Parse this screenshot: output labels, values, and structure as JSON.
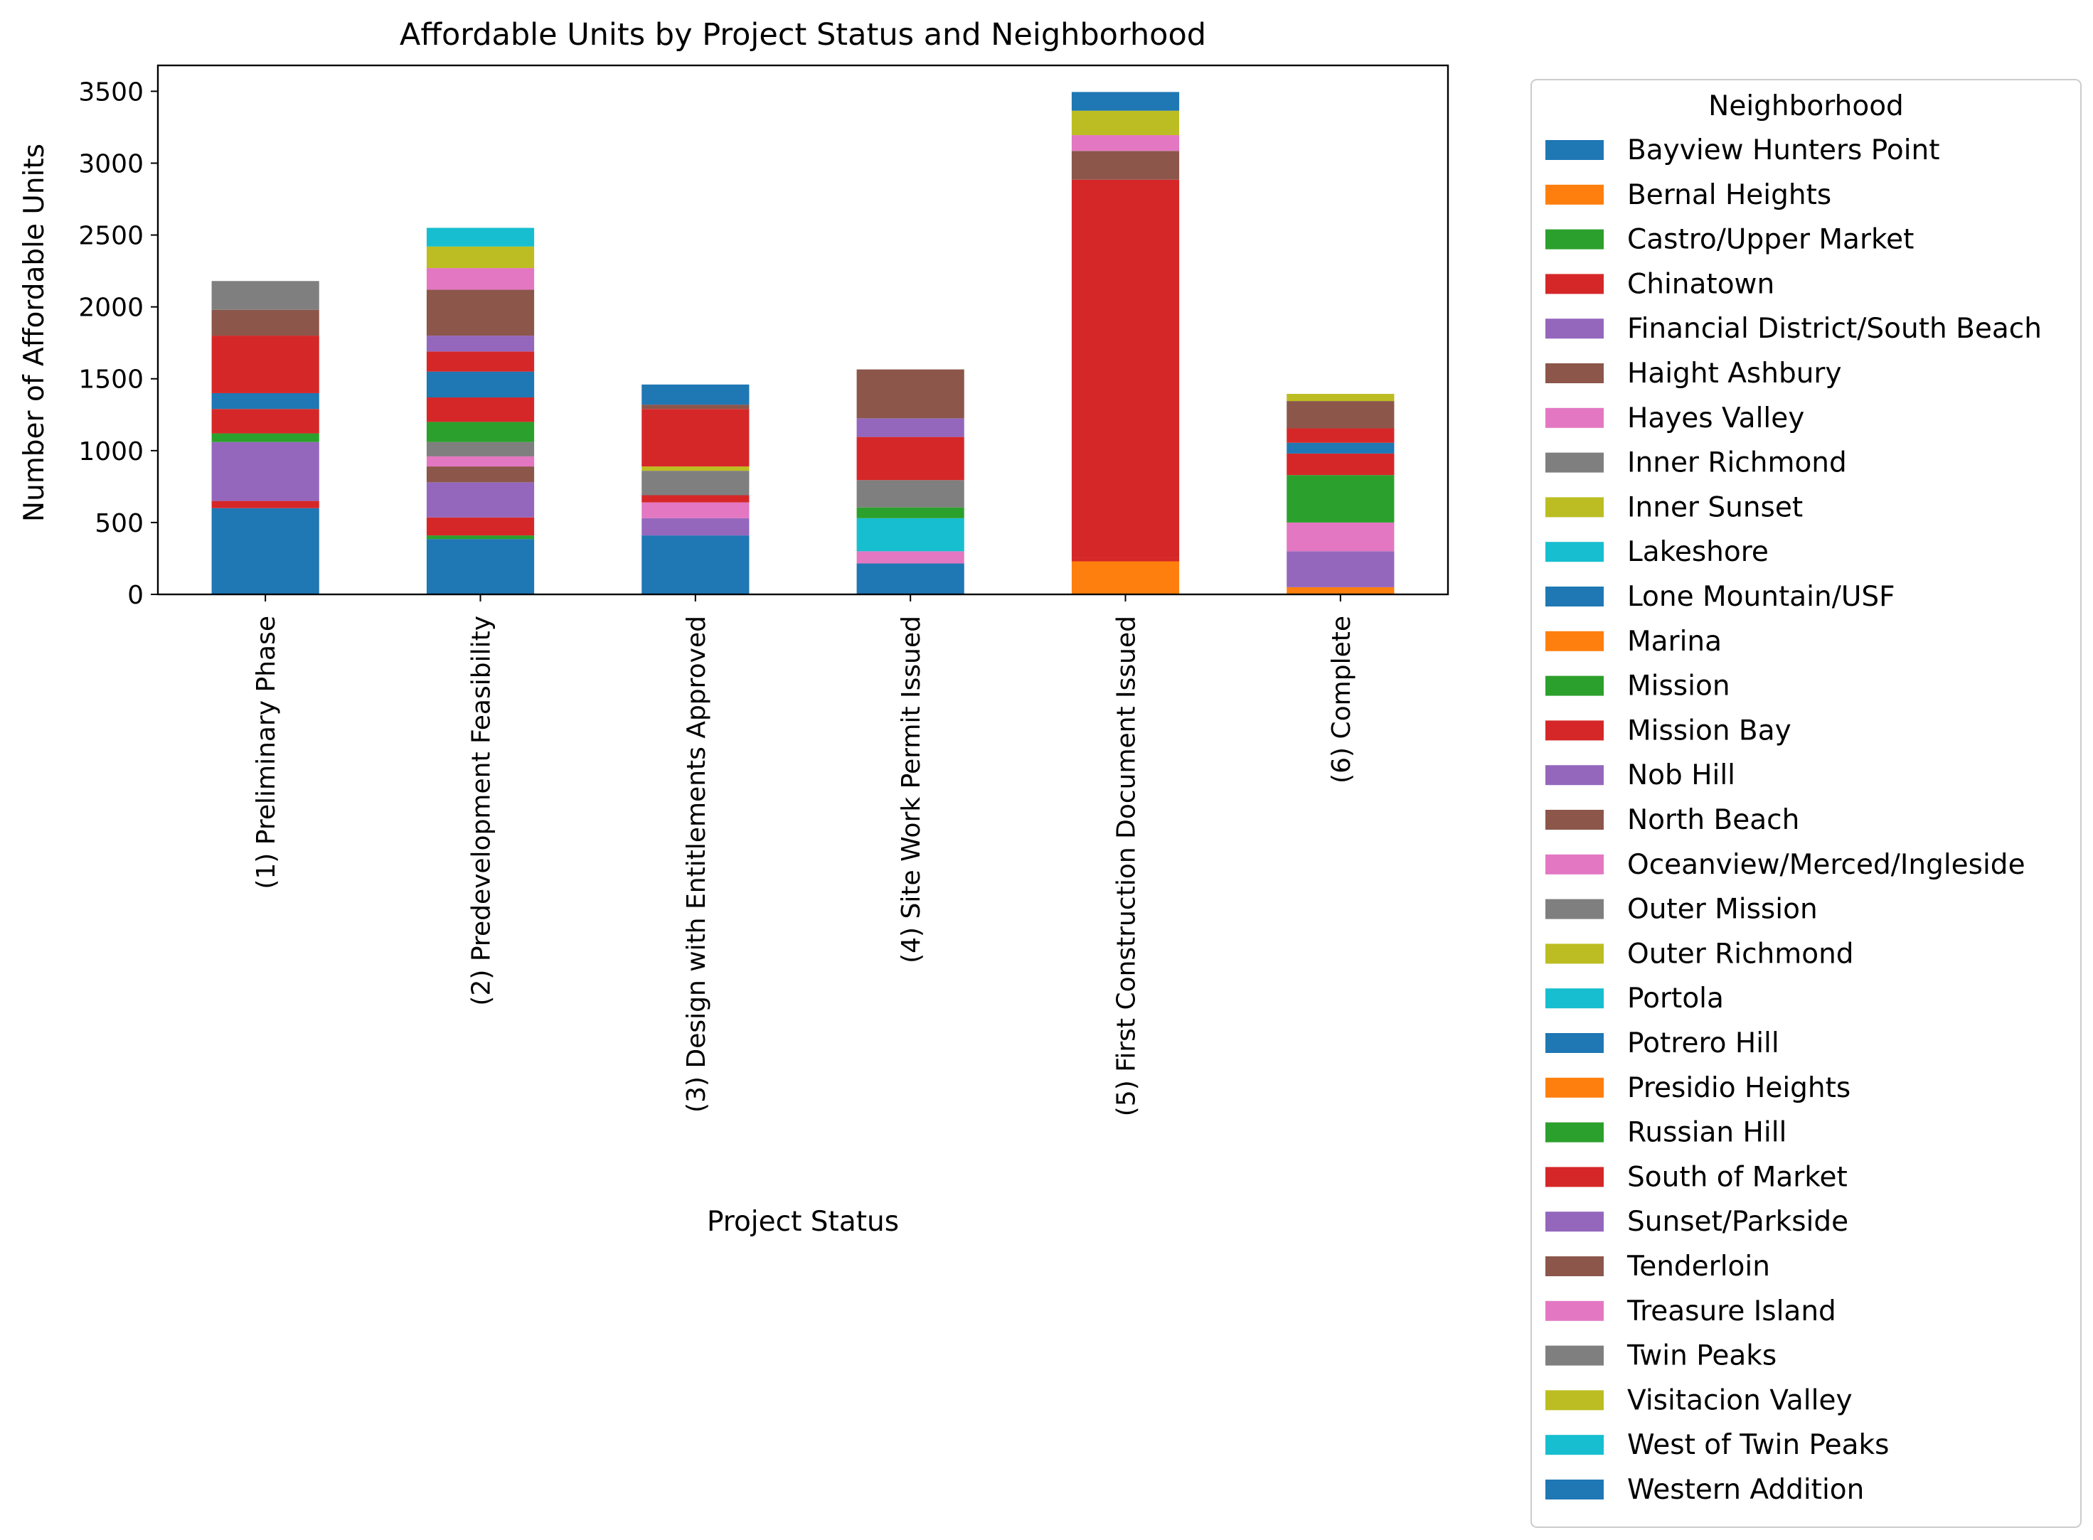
{
  "chart_data": {
    "type": "bar",
    "stacked": true,
    "title": "Affordable Units by Project Status and Neighborhood",
    "xlabel": "Project Status",
    "ylabel": "Number of Affordable Units",
    "ylim": [
      0,
      3680
    ],
    "yticks": [
      0,
      500,
      1000,
      1500,
      2000,
      2500,
      3000,
      3500
    ],
    "grid": false,
    "legend": {
      "title": "Neighborhood",
      "placement": "outside-right"
    },
    "categories": [
      "(1) Preliminary Phase",
      "(2) Predevelopment Feasibility",
      "(3) Design with Entitlements Approved",
      "(4) Site Work Permit Issued",
      "(5) First Construction Document Issued",
      "(6) Complete"
    ],
    "series": [
      {
        "name": "Bayview Hunters Point",
        "color": "#1f77b4",
        "values": [
          600,
          385,
          410,
          215,
          0,
          0
        ]
      },
      {
        "name": "Bernal Heights",
        "color": "#ff7f0e",
        "values": [
          0,
          0,
          0,
          0,
          230,
          50
        ]
      },
      {
        "name": "Castro/Upper Market",
        "color": "#2ca02c",
        "values": [
          0,
          25,
          0,
          0,
          0,
          0
        ]
      },
      {
        "name": "Chinatown",
        "color": "#d62728",
        "values": [
          50,
          125,
          0,
          0,
          25,
          0
        ]
      },
      {
        "name": "Financial District/South Beach",
        "color": "#9467bd",
        "values": [
          410,
          245,
          120,
          0,
          0,
          250
        ]
      },
      {
        "name": "Haight Ashbury",
        "color": "#8c564b",
        "values": [
          0,
          110,
          0,
          0,
          0,
          0
        ]
      },
      {
        "name": "Hayes Valley",
        "color": "#e377c2",
        "values": [
          0,
          70,
          110,
          85,
          0,
          200
        ]
      },
      {
        "name": "Inner Richmond",
        "color": "#7f7f7f",
        "values": [
          0,
          100,
          0,
          0,
          0,
          0
        ]
      },
      {
        "name": "Inner Sunset",
        "color": "#bcbd22",
        "values": [
          0,
          0,
          0,
          0,
          0,
          0
        ]
      },
      {
        "name": "Lakeshore",
        "color": "#17becf",
        "values": [
          0,
          0,
          0,
          230,
          0,
          0
        ]
      },
      {
        "name": "Lone Mountain/USF",
        "color": "#1f77b4",
        "values": [
          0,
          0,
          0,
          0,
          0,
          0
        ]
      },
      {
        "name": "Marina",
        "color": "#ff7f0e",
        "values": [
          0,
          0,
          0,
          0,
          0,
          0
        ]
      },
      {
        "name": "Mission",
        "color": "#2ca02c",
        "values": [
          60,
          140,
          0,
          75,
          0,
          330
        ]
      },
      {
        "name": "Mission Bay",
        "color": "#d62728",
        "values": [
          170,
          170,
          50,
          0,
          0,
          150
        ]
      },
      {
        "name": "Nob Hill",
        "color": "#9467bd",
        "values": [
          0,
          0,
          0,
          0,
          0,
          0
        ]
      },
      {
        "name": "North Beach",
        "color": "#8c564b",
        "values": [
          0,
          0,
          0,
          0,
          0,
          0
        ]
      },
      {
        "name": "Oceanview/Merced/Ingleside",
        "color": "#e377c2",
        "values": [
          0,
          0,
          0,
          0,
          0,
          0
        ]
      },
      {
        "name": "Outer Mission",
        "color": "#7f7f7f",
        "values": [
          0,
          0,
          170,
          190,
          0,
          0
        ]
      },
      {
        "name": "Outer Richmond",
        "color": "#bcbd22",
        "values": [
          0,
          0,
          30,
          0,
          0,
          0
        ]
      },
      {
        "name": "Portola",
        "color": "#17becf",
        "values": [
          0,
          0,
          0,
          0,
          0,
          0
        ]
      },
      {
        "name": "Potrero Hill",
        "color": "#1f77b4",
        "values": [
          110,
          180,
          0,
          0,
          0,
          75
        ]
      },
      {
        "name": "Presidio Heights",
        "color": "#ff7f0e",
        "values": [
          0,
          0,
          0,
          0,
          0,
          0
        ]
      },
      {
        "name": "Russian Hill",
        "color": "#2ca02c",
        "values": [
          0,
          0,
          0,
          0,
          0,
          0
        ]
      },
      {
        "name": "South of Market",
        "color": "#d62728",
        "values": [
          400,
          140,
          400,
          300,
          2630,
          100
        ]
      },
      {
        "name": "Sunset/Parkside",
        "color": "#9467bd",
        "values": [
          0,
          110,
          0,
          130,
          0,
          0
        ]
      },
      {
        "name": "Tenderloin",
        "color": "#8c564b",
        "values": [
          180,
          320,
          30,
          340,
          200,
          190
        ]
      },
      {
        "name": "Treasure Island",
        "color": "#e377c2",
        "values": [
          0,
          150,
          0,
          0,
          110,
          0
        ]
      },
      {
        "name": "Twin Peaks",
        "color": "#7f7f7f",
        "values": [
          200,
          0,
          0,
          0,
          0,
          0
        ]
      },
      {
        "name": "Visitacion Valley",
        "color": "#bcbd22",
        "values": [
          0,
          150,
          0,
          0,
          170,
          50
        ]
      },
      {
        "name": "West of Twin Peaks",
        "color": "#17becf",
        "values": [
          0,
          130,
          0,
          0,
          0,
          0
        ]
      },
      {
        "name": "Western Addition",
        "color": "#1f77b4",
        "values": [
          0,
          0,
          140,
          0,
          130,
          0
        ]
      }
    ]
  }
}
